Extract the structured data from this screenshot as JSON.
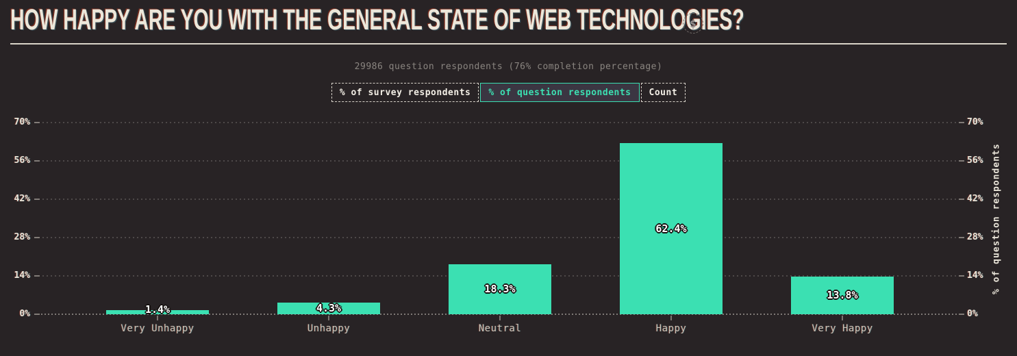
{
  "header": {
    "title": "HOW HAPPY ARE YOU WITH THE GENERAL STATE OF WEB TECHNOLOGIES?",
    "currency_icon": "$"
  },
  "subtitle": "29986 question respondents (76% completion percentage)",
  "controls": {
    "options": [
      {
        "label": "% of survey respondents",
        "selected": false
      },
      {
        "label": "% of question respondents",
        "selected": true
      },
      {
        "label": "Count",
        "selected": false
      }
    ]
  },
  "chart_data": {
    "type": "bar",
    "title": "How happy are you with the general state of web technologies?",
    "categories": [
      "Very Unhappy",
      "Unhappy",
      "Neutral",
      "Happy",
      "Very Happy"
    ],
    "values": [
      1.4,
      4.3,
      18.3,
      62.4,
      13.8
    ],
    "value_labels": [
      "1.4%",
      "4.3%",
      "18.3%",
      "62.4%",
      "13.8%"
    ],
    "unit": "% of question respondents",
    "ylabel_right": "% of question respondents",
    "ylim": [
      0,
      70
    ],
    "y_ticks": [
      0,
      14,
      28,
      42,
      56,
      70
    ],
    "y_tick_labels": [
      "0%",
      "14%",
      "28%",
      "42%",
      "56%",
      "70%"
    ],
    "grid": "horizontal-dotted",
    "legend": "none",
    "bar_color": "#3be0b2"
  },
  "colors": {
    "background": "#282325",
    "accent": "#3be0b2",
    "cream": "#e9e4d8",
    "muted_text": "#8a8580",
    "selected_button_bg": "#3b3642"
  }
}
